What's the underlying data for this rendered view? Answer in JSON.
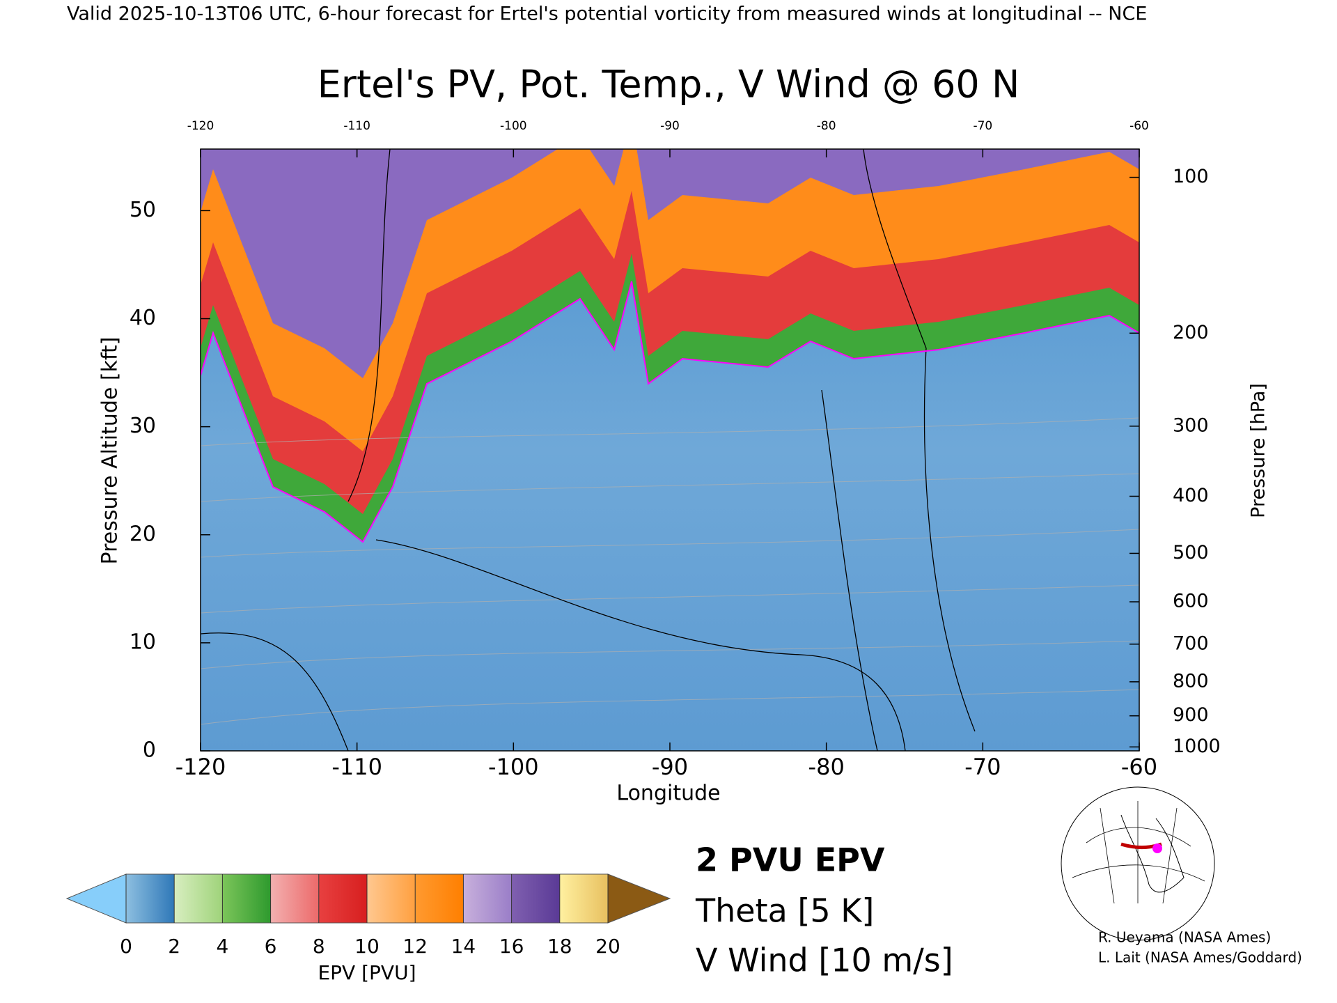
{
  "header": "Valid 2025-10-13T06 UTC, 6-hour forecast for Ertel's potential vorticity from measured winds at longitudinal -- NCE",
  "chart_data": {
    "type": "cross-section",
    "title": "Ertel's PV, Pot. Temp., V Wind @ 60 N",
    "x_label": "Longitude",
    "y_label": "Pressure Altitude [kft]",
    "y2_label": "Pressure [hPa]",
    "xlim": [
      -120,
      -60
    ],
    "xticks": [
      -120,
      -110,
      -100,
      -90,
      -80,
      -70,
      -60
    ],
    "ylim": [
      0,
      55.7
    ],
    "yticks": [
      0,
      10,
      20,
      30,
      40,
      50
    ],
    "y2lim": [
      1013.25,
      88.2
    ],
    "y2ticks": [
      1000,
      900,
      800,
      700,
      600,
      500,
      400,
      300,
      200,
      100
    ],
    "y2scale": "pressure-altitude",
    "legend": [
      {
        "name": "2 PVU EPV",
        "color": "#ff00ff"
      },
      {
        "name": "Theta [5 K]",
        "color": "#aaaaaa"
      },
      {
        "name": "V Wind [10 m/s]",
        "color": "#000000"
      }
    ],
    "colorbar": {
      "label": "EPV [PVU]",
      "ticks": [
        0,
        2,
        4,
        6,
        8,
        10,
        12,
        14,
        16,
        18,
        20
      ],
      "colors": [
        [
          "#8dbfe0",
          "#2f78b8"
        ],
        [
          "#d8eec0",
          "#9fd37a"
        ],
        [
          "#7cc55a",
          "#2e9a2e"
        ],
        [
          "#f3b0b0",
          "#ec6a6a"
        ],
        [
          "#e84040",
          "#d71f1f"
        ],
        [
          "#ffc890",
          "#ffa040"
        ],
        [
          "#ff9a30",
          "#ff7f00"
        ],
        [
          "#c8b0dc",
          "#9a7ec8"
        ],
        [
          "#8060b0",
          "#5a3a96"
        ],
        [
          "#fff0a0",
          "#e8c060"
        ]
      ],
      "under": "#87cefa",
      "over": "#8b5a14"
    },
    "credits": [
      "R. Ueyama (NASA Ames)",
      "L. Lait (NASA Ames/Goddard)"
    ]
  }
}
